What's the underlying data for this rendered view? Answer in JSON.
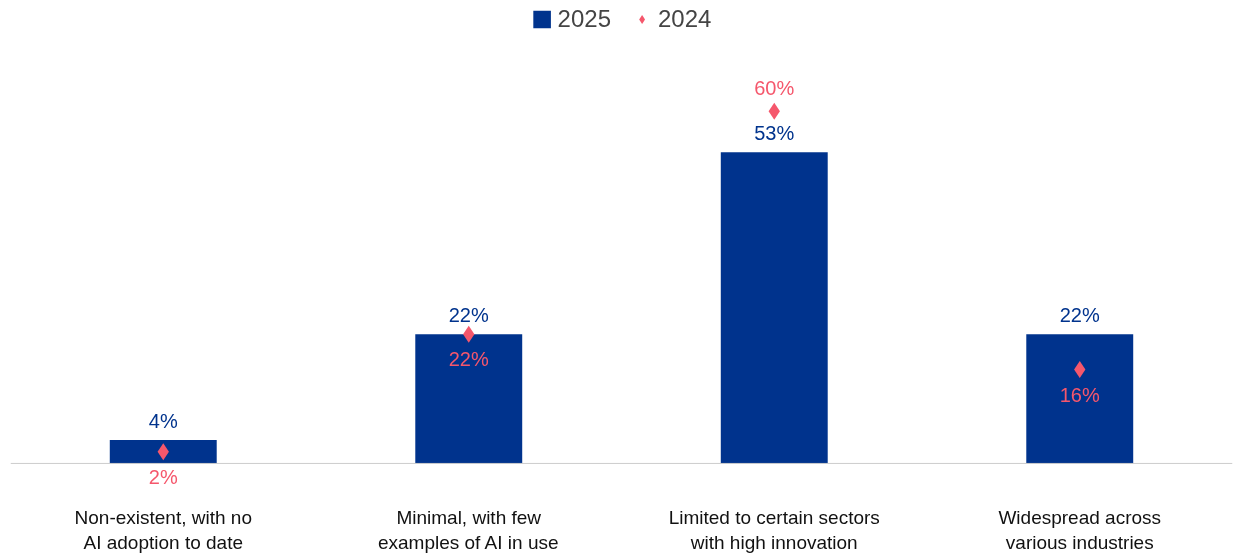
{
  "chart_data": {
    "type": "bar",
    "categories": [
      "Non-existent, with no\nAI adoption to date",
      "Minimal, with few\nexamples of AI in use",
      "Limited to certain sectors\nwith high innovation",
      "Widespread across\nvarious industries"
    ],
    "series": [
      {
        "name": "2025",
        "type": "bar",
        "color": "#00338d",
        "values": [
          4,
          22,
          53,
          22
        ],
        "value_labels": [
          "4%",
          "22%",
          "53%",
          "22%"
        ]
      },
      {
        "name": "2024",
        "type": "scatter",
        "marker": "diamond",
        "color": "#f5576c",
        "values": [
          2,
          22,
          60,
          16
        ],
        "value_labels": [
          "2%",
          "22%",
          "60%",
          "16%"
        ]
      }
    ],
    "legend": "top"
  }
}
